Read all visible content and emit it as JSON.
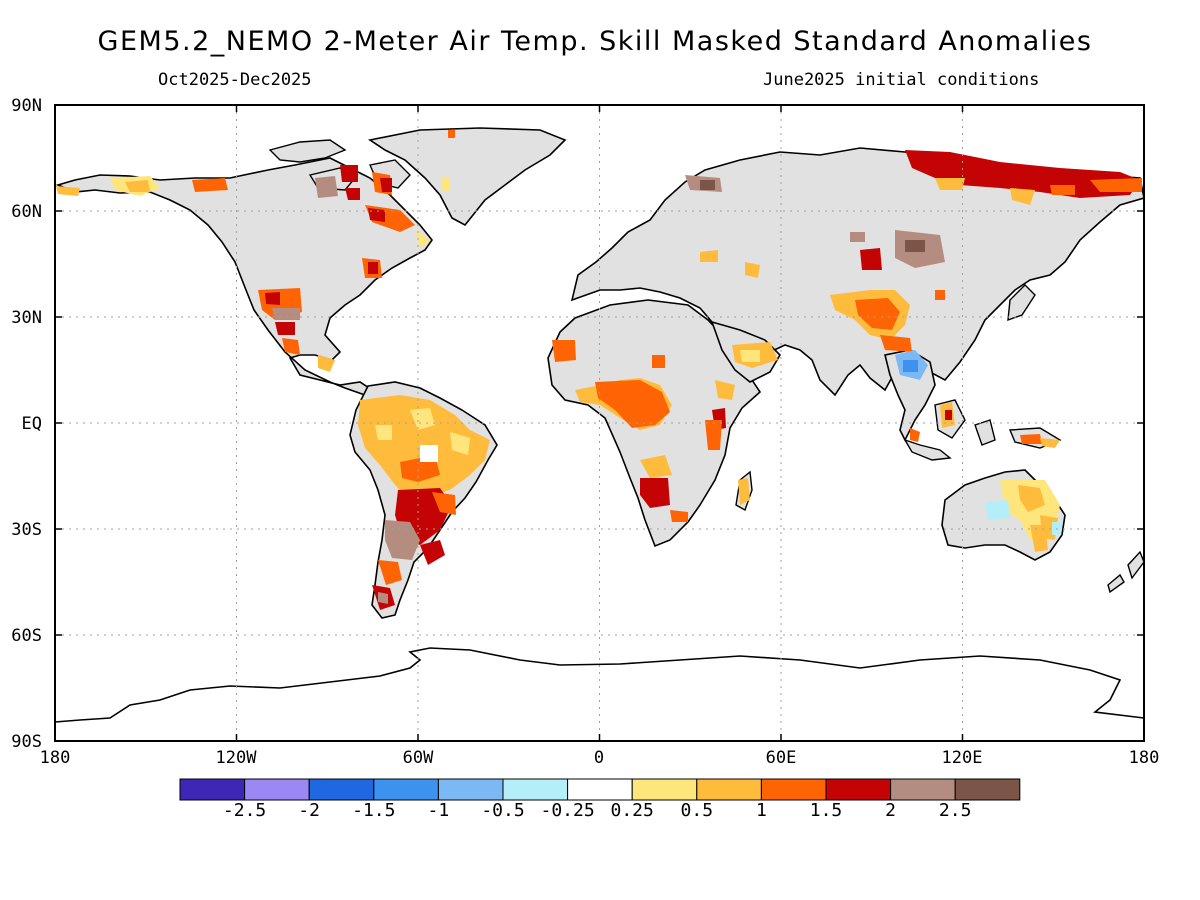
{
  "title": "GEM5.2_NEMO 2-Meter Air Temp. Skill Masked Standard Anomalies",
  "subtitle_left": "Oct2025-Dec2025",
  "subtitle_right": "June2025 initial conditions",
  "y_axis_labels": [
    "90N",
    "60N",
    "30N",
    "EQ",
    "30S",
    "60S",
    "90S"
  ],
  "x_axis_labels": [
    "180",
    "120W",
    "60W",
    "0",
    "60E",
    "120E",
    "180"
  ],
  "colorbar": {
    "colors": [
      "#3e27b4",
      "#9c88f4",
      "#2068e2",
      "#3c92ee",
      "#7cb8f4",
      "#b4eef8",
      "#ffffff",
      "#ffe67c",
      "#ffbc3c",
      "#ff6404",
      "#c40404",
      "#b48c80",
      "#7c5448"
    ],
    "labels": [
      "-2.5",
      "-2",
      "-1.5",
      "-1",
      "-0.5",
      "-0.25",
      "0.25",
      "0.5",
      "1",
      "1.5",
      "2",
      "2.5"
    ]
  },
  "map": {
    "land_color": "#e1e1e1",
    "ocean_color": "#ffffff",
    "grid": "dotted, every 30 degrees"
  }
}
